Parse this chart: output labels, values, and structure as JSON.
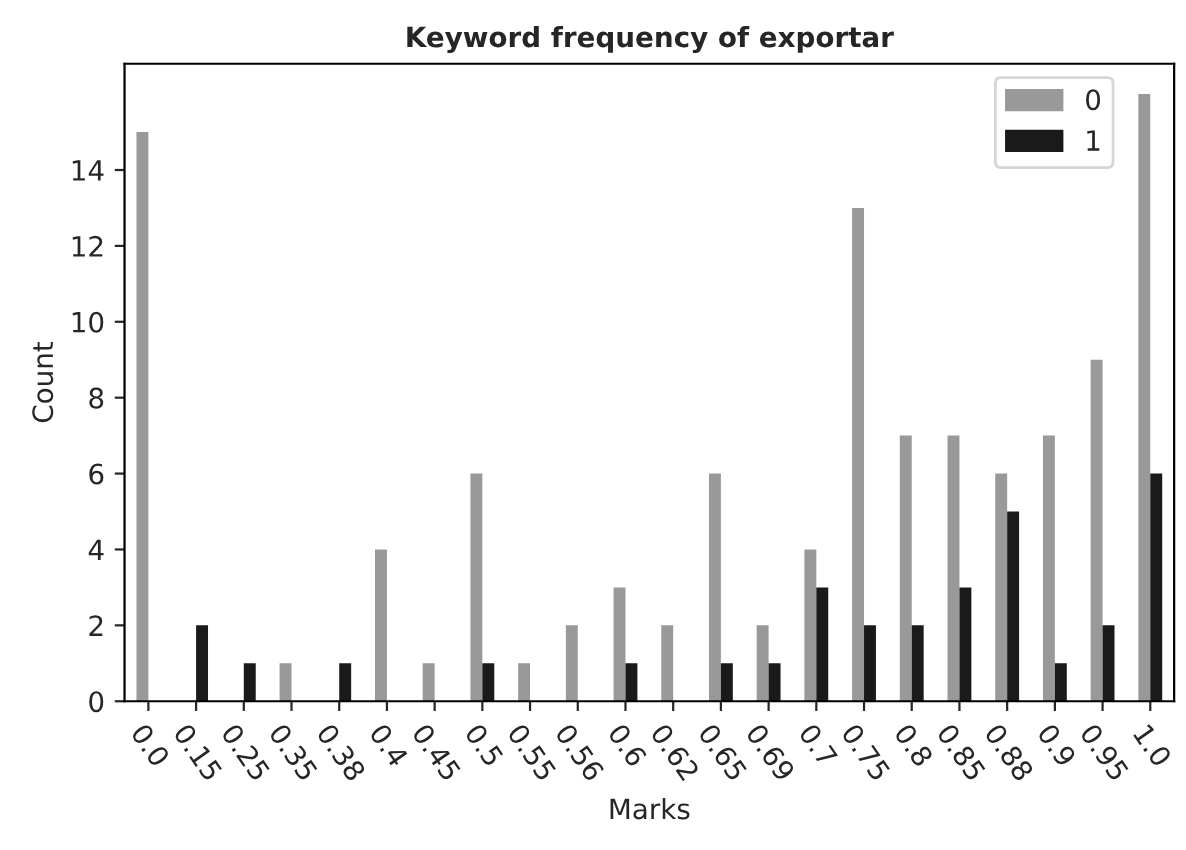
{
  "chart_data": {
    "type": "bar",
    "title": "Keyword frequency of exportar",
    "xlabel": "Marks",
    "ylabel": "Count",
    "categories": [
      "0.0",
      "0.15",
      "0.25",
      "0.35",
      "0.38",
      "0.4",
      "0.45",
      "0.5",
      "0.55",
      "0.56",
      "0.6",
      "0.62",
      "0.65",
      "0.69",
      "0.7",
      "0.75",
      "0.8",
      "0.85",
      "0.88",
      "0.9",
      "0.95",
      "1.0"
    ],
    "series": [
      {
        "name": "0",
        "color": "#999999",
        "values": [
          15,
          null,
          null,
          1,
          null,
          4,
          1,
          6,
          1,
          2,
          3,
          2,
          6,
          2,
          4,
          13,
          7,
          7,
          6,
          7,
          9,
          16
        ]
      },
      {
        "name": "1",
        "color": "#1a1a1a",
        "values": [
          null,
          2,
          1,
          null,
          1,
          null,
          null,
          1,
          null,
          null,
          1,
          null,
          1,
          1,
          3,
          2,
          2,
          3,
          5,
          1,
          2,
          6
        ]
      }
    ],
    "ylim": [
      0,
      16.8
    ],
    "yticks": [
      0,
      2,
      4,
      6,
      8,
      10,
      12,
      14
    ],
    "legend": "top right",
    "grid": false
  }
}
